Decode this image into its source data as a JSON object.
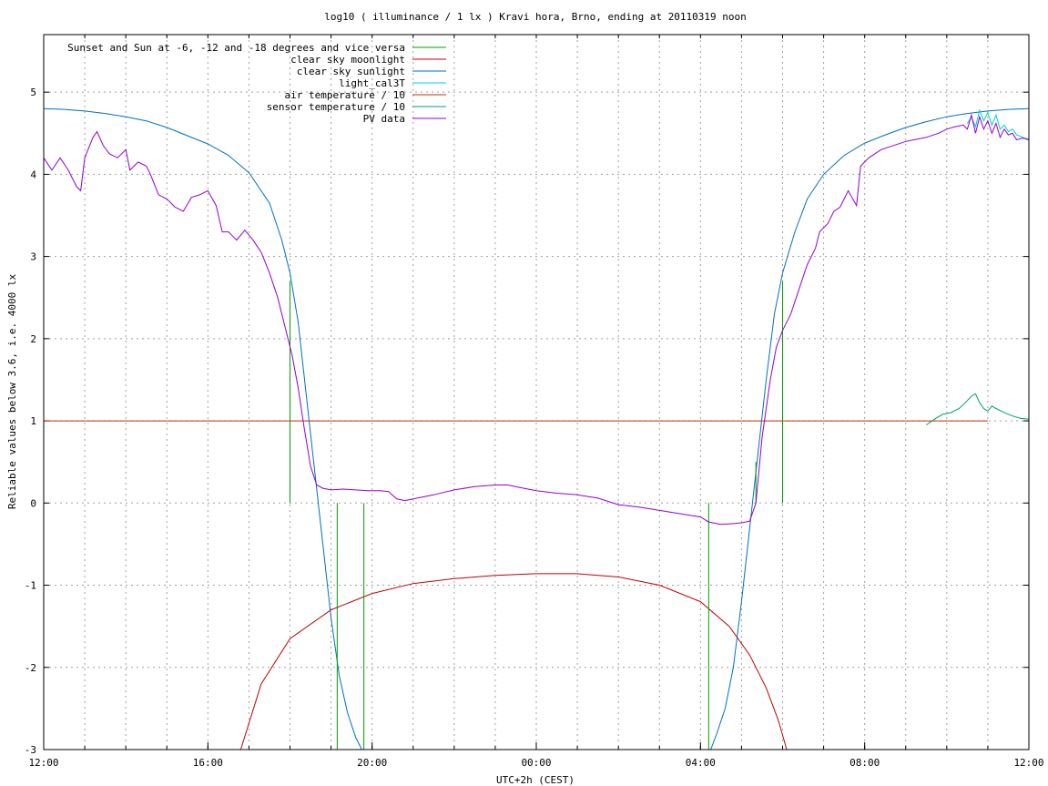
{
  "colors": {
    "sunset": "#00a000",
    "moon": "#c00000",
    "sun": "#0070c0",
    "cal3t": "#00d0d0",
    "airtemp": "#c03000",
    "sensortemp": "#00a070",
    "pv": "#9400d3"
  },
  "chart_data": {
    "type": "line",
    "title": "log10 ( illuminance / 1 lx ) Kravi hora, Brno, ending at 20110319 noon",
    "xlabel": "UTC+2h (CEST)",
    "ylabel": "Reliable values below 3.6, i.e. 4000 lx",
    "xlim": [
      0,
      24
    ],
    "ylim": [
      -3,
      5.7
    ],
    "x_unit": "hours after 12:00 UTC+2h (CEST)",
    "xticks": [
      {
        "value": 0,
        "label": "12:00"
      },
      {
        "value": 4,
        "label": "16:00"
      },
      {
        "value": 8,
        "label": "20:00"
      },
      {
        "value": 12,
        "label": "00:00"
      },
      {
        "value": 16,
        "label": "04:00"
      },
      {
        "value": 20,
        "label": "08:00"
      },
      {
        "value": 24,
        "label": "12:00"
      }
    ],
    "yticks": [
      {
        "value": -3,
        "label": "-3"
      },
      {
        "value": -2,
        "label": "-2"
      },
      {
        "value": -1,
        "label": "-1"
      },
      {
        "value": 0,
        "label": "0"
      },
      {
        "value": 1,
        "label": "1"
      },
      {
        "value": 2,
        "label": "2"
      },
      {
        "value": 3,
        "label": "3"
      },
      {
        "value": 4,
        "label": "4"
      },
      {
        "value": 5,
        "label": "5"
      }
    ],
    "x_minor_grid_step": 1,
    "grid": true,
    "legend_position": "top-left",
    "series": [
      {
        "name": "Sunset and Sun at -6, -12 and -18 degrees and vice versa",
        "key": "sunset",
        "type": "impulses",
        "impulses": [
          {
            "x": 6.0,
            "y": 2.7
          },
          {
            "x": 6.65,
            "y": 0
          },
          {
            "x": 7.15,
            "y": -3
          },
          {
            "x": 7.8,
            "y": -3
          },
          {
            "x": 16.2,
            "y": -3
          },
          {
            "x": 16.85,
            "y": 0
          },
          {
            "x": 17.35,
            "y": 0.5
          },
          {
            "x": 18.0,
            "y": 2.7
          }
        ]
      },
      {
        "name": "clear sky moonlight",
        "key": "moon",
        "points": [
          [
            4.8,
            -3
          ],
          [
            5.3,
            -2.2
          ],
          [
            6,
            -1.65
          ],
          [
            7,
            -1.3
          ],
          [
            8,
            -1.1
          ],
          [
            9,
            -0.98
          ],
          [
            10,
            -0.92
          ],
          [
            11,
            -0.88
          ],
          [
            12,
            -0.86
          ],
          [
            13,
            -0.86
          ],
          [
            14,
            -0.9
          ],
          [
            15,
            -1.0
          ],
          [
            16,
            -1.2
          ],
          [
            16.7,
            -1.5
          ],
          [
            17.2,
            -1.85
          ],
          [
            17.6,
            -2.25
          ],
          [
            17.9,
            -2.65
          ],
          [
            18.1,
            -3
          ]
        ]
      },
      {
        "name": "clear sky sunlight",
        "key": "sun",
        "points": [
          [
            0,
            4.8
          ],
          [
            0.5,
            4.79
          ],
          [
            1,
            4.77
          ],
          [
            1.5,
            4.74
          ],
          [
            2,
            4.7
          ],
          [
            2.5,
            4.65
          ],
          [
            3,
            4.57
          ],
          [
            3.5,
            4.47
          ],
          [
            4,
            4.37
          ],
          [
            4.5,
            4.23
          ],
          [
            5,
            4.02
          ],
          [
            5.5,
            3.65
          ],
          [
            5.8,
            3.2
          ],
          [
            6,
            2.8
          ],
          [
            6.2,
            2.2
          ],
          [
            6.4,
            1.3
          ],
          [
            6.6,
            0.4
          ],
          [
            6.8,
            -0.5
          ],
          [
            7.0,
            -1.4
          ],
          [
            7.2,
            -2.1
          ],
          [
            7.4,
            -2.55
          ],
          [
            7.6,
            -2.85
          ],
          [
            7.75,
            -3
          ],
          [
            16.25,
            -3
          ],
          [
            16.4,
            -2.8
          ],
          [
            16.6,
            -2.5
          ],
          [
            16.8,
            -2.0
          ],
          [
            17.0,
            -1.2
          ],
          [
            17.2,
            -0.3
          ],
          [
            17.4,
            0.6
          ],
          [
            17.6,
            1.5
          ],
          [
            17.8,
            2.3
          ],
          [
            18.0,
            2.8
          ],
          [
            18.3,
            3.3
          ],
          [
            18.6,
            3.7
          ],
          [
            19,
            4.0
          ],
          [
            19.5,
            4.23
          ],
          [
            20,
            4.38
          ],
          [
            20.5,
            4.48
          ],
          [
            21,
            4.57
          ],
          [
            21.5,
            4.64
          ],
          [
            22,
            4.7
          ],
          [
            22.5,
            4.74
          ],
          [
            23,
            4.77
          ],
          [
            23.5,
            4.79
          ],
          [
            24,
            4.8
          ]
        ]
      },
      {
        "name": "light_cal3T",
        "key": "cal3t",
        "points": [
          [
            22.5,
            4.62
          ],
          [
            22.6,
            4.7
          ],
          [
            22.7,
            4.58
          ],
          [
            22.8,
            4.78
          ],
          [
            22.9,
            4.65
          ],
          [
            23.0,
            4.75
          ],
          [
            23.1,
            4.6
          ],
          [
            23.2,
            4.72
          ],
          [
            23.3,
            4.55
          ],
          [
            23.4,
            4.6
          ],
          [
            23.5,
            4.52
          ],
          [
            23.6,
            4.55
          ],
          [
            23.7,
            4.48
          ],
          [
            23.8,
            4.46
          ],
          [
            23.9,
            4.44
          ],
          [
            24.0,
            4.43
          ]
        ]
      },
      {
        "name": "air temperature / 10",
        "key": "airtemp",
        "points": [
          [
            0,
            1.0
          ],
          [
            23.0,
            1.0
          ]
        ]
      },
      {
        "name": "sensor temperature / 10",
        "key": "sensortemp",
        "points": [
          [
            21.5,
            0.95
          ],
          [
            21.7,
            1.02
          ],
          [
            21.9,
            1.08
          ],
          [
            22.1,
            1.1
          ],
          [
            22.3,
            1.15
          ],
          [
            22.45,
            1.22
          ],
          [
            22.6,
            1.3
          ],
          [
            22.7,
            1.33
          ],
          [
            22.8,
            1.22
          ],
          [
            22.9,
            1.15
          ],
          [
            23.0,
            1.12
          ],
          [
            23.1,
            1.18
          ],
          [
            23.2,
            1.15
          ],
          [
            23.4,
            1.1
          ],
          [
            23.6,
            1.06
          ],
          [
            23.8,
            1.03
          ],
          [
            24.0,
            1.02
          ]
        ]
      },
      {
        "name": "PV data",
        "key": "pv",
        "points": [
          [
            0,
            4.2
          ],
          [
            0.2,
            4.05
          ],
          [
            0.4,
            4.2
          ],
          [
            0.6,
            4.05
          ],
          [
            0.8,
            3.85
          ],
          [
            0.9,
            3.8
          ],
          [
            1.0,
            4.2
          ],
          [
            1.2,
            4.45
          ],
          [
            1.3,
            4.52
          ],
          [
            1.45,
            4.35
          ],
          [
            1.6,
            4.25
          ],
          [
            1.8,
            4.2
          ],
          [
            2.0,
            4.3
          ],
          [
            2.1,
            4.05
          ],
          [
            2.3,
            4.15
          ],
          [
            2.5,
            4.1
          ],
          [
            2.6,
            4.0
          ],
          [
            2.8,
            3.75
          ],
          [
            3.0,
            3.7
          ],
          [
            3.2,
            3.6
          ],
          [
            3.4,
            3.55
          ],
          [
            3.6,
            3.72
          ],
          [
            3.8,
            3.75
          ],
          [
            4.0,
            3.8
          ],
          [
            4.2,
            3.62
          ],
          [
            4.35,
            3.3
          ],
          [
            4.5,
            3.3
          ],
          [
            4.7,
            3.2
          ],
          [
            4.9,
            3.32
          ],
          [
            5.1,
            3.2
          ],
          [
            5.3,
            3.05
          ],
          [
            5.5,
            2.8
          ],
          [
            5.7,
            2.5
          ],
          [
            5.9,
            2.1
          ],
          [
            6.05,
            1.8
          ],
          [
            6.2,
            1.4
          ],
          [
            6.35,
            0.9
          ],
          [
            6.5,
            0.45
          ],
          [
            6.65,
            0.22
          ],
          [
            6.8,
            0.18
          ],
          [
            7.0,
            0.16
          ],
          [
            7.3,
            0.17
          ],
          [
            7.6,
            0.16
          ],
          [
            7.9,
            0.15
          ],
          [
            8.2,
            0.15
          ],
          [
            8.4,
            0.14
          ],
          [
            8.6,
            0.05
          ],
          [
            8.8,
            0.03
          ],
          [
            9.1,
            0.06
          ],
          [
            9.5,
            0.1
          ],
          [
            10,
            0.16
          ],
          [
            10.5,
            0.2
          ],
          [
            11,
            0.22
          ],
          [
            11.3,
            0.22
          ],
          [
            11.6,
            0.19
          ],
          [
            12,
            0.15
          ],
          [
            12.5,
            0.12
          ],
          [
            13,
            0.1
          ],
          [
            13.5,
            0.06
          ],
          [
            14,
            -0.02
          ],
          [
            14.5,
            -0.05
          ],
          [
            15,
            -0.09
          ],
          [
            15.5,
            -0.13
          ],
          [
            16,
            -0.17
          ],
          [
            16.2,
            -0.23
          ],
          [
            16.5,
            -0.26
          ],
          [
            16.8,
            -0.25
          ],
          [
            17.0,
            -0.24
          ],
          [
            17.2,
            -0.22
          ],
          [
            17.35,
            0.0
          ],
          [
            17.5,
            0.8
          ],
          [
            17.7,
            1.5
          ],
          [
            17.85,
            1.9
          ],
          [
            18.0,
            2.1
          ],
          [
            18.2,
            2.3
          ],
          [
            18.4,
            2.6
          ],
          [
            18.6,
            2.9
          ],
          [
            18.8,
            3.1
          ],
          [
            18.9,
            3.3
          ],
          [
            19.1,
            3.4
          ],
          [
            19.25,
            3.55
          ],
          [
            19.4,
            3.6
          ],
          [
            19.6,
            3.8
          ],
          [
            19.8,
            3.62
          ],
          [
            19.9,
            4.1
          ],
          [
            20.1,
            4.2
          ],
          [
            20.4,
            4.3
          ],
          [
            20.7,
            4.35
          ],
          [
            21.0,
            4.4
          ],
          [
            21.2,
            4.42
          ],
          [
            21.5,
            4.45
          ],
          [
            21.8,
            4.5
          ],
          [
            22.0,
            4.55
          ],
          [
            22.2,
            4.58
          ],
          [
            22.4,
            4.6
          ],
          [
            22.5,
            4.55
          ],
          [
            22.6,
            4.72
          ],
          [
            22.7,
            4.5
          ],
          [
            22.8,
            4.7
          ],
          [
            22.9,
            4.55
          ],
          [
            23.0,
            4.65
          ],
          [
            23.1,
            4.5
          ],
          [
            23.2,
            4.62
          ],
          [
            23.3,
            4.45
          ],
          [
            23.4,
            4.55
          ],
          [
            23.5,
            4.48
          ],
          [
            23.6,
            4.5
          ],
          [
            23.7,
            4.42
          ],
          [
            23.85,
            4.44
          ],
          [
            24.0,
            4.42
          ]
        ]
      }
    ]
  }
}
